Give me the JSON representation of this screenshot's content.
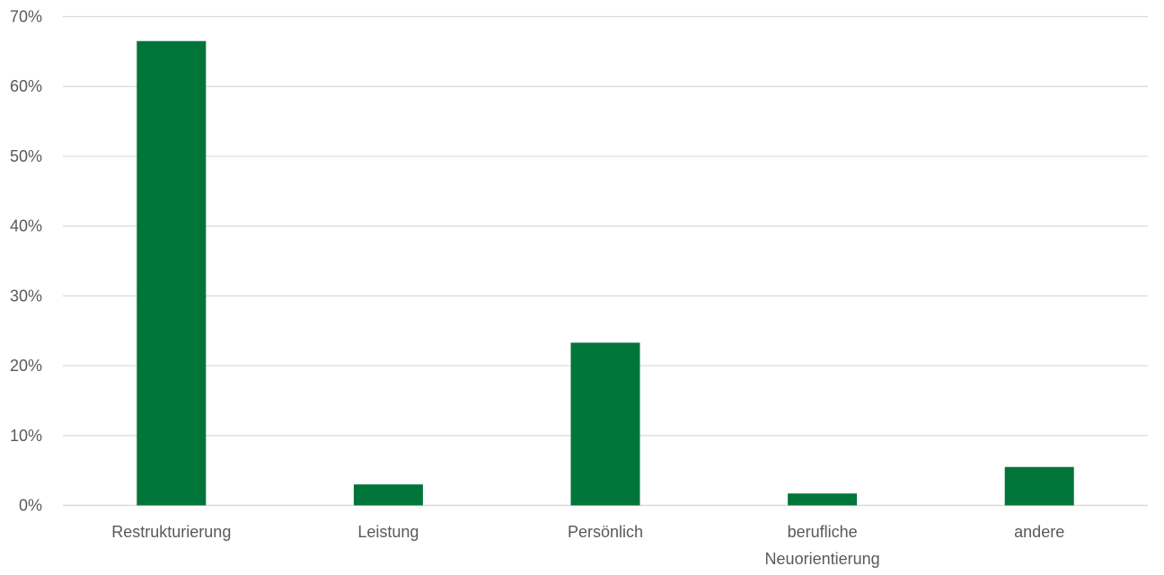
{
  "chart_data": {
    "type": "bar",
    "title": "",
    "xlabel": "",
    "ylabel": "",
    "categories": [
      [
        "Restrukturierung"
      ],
      [
        "Leistung"
      ],
      [
        "Persönlich"
      ],
      [
        "berufliche",
        "Neuorientierung"
      ],
      [
        "andere"
      ]
    ],
    "values": [
      66.5,
      3.0,
      23.3,
      1.7,
      5.5
    ],
    "y_ticks": [
      "0%",
      "10%",
      "20%",
      "30%",
      "40%",
      "50%",
      "60%",
      "70%"
    ],
    "ylim": [
      0,
      70
    ],
    "unit": "%",
    "grid": true,
    "legend": "none",
    "colors": {
      "bar": "#00753A",
      "grid": "#D9D9D9",
      "axis_text": "#595959"
    }
  }
}
